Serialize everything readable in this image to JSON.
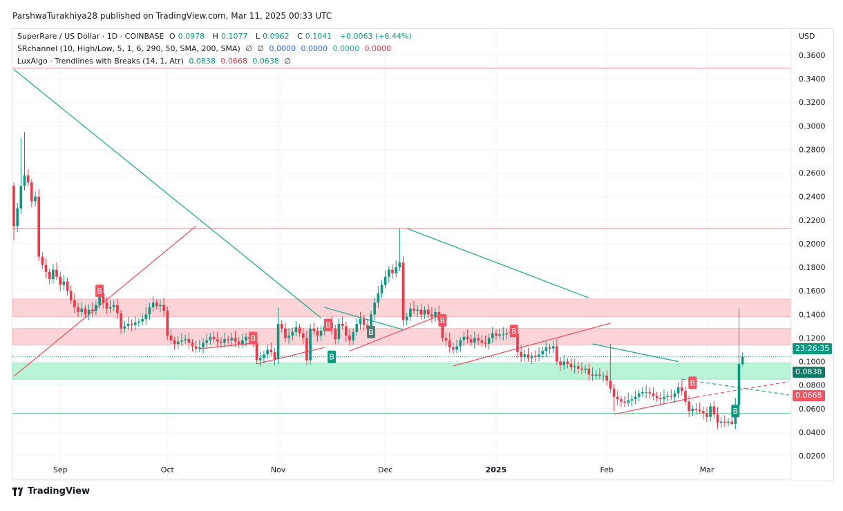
{
  "header": {
    "publisher": "ParshwaTurakhiya28 published on TradingView.com, Mar 11, 2025 00:33 UTC"
  },
  "legend": {
    "symbol": "SuperRare / US Dollar · 1D · COINBASE",
    "o_label": "O",
    "o": "0.0978",
    "h_label": "H",
    "h": "0.1077",
    "l_label": "L",
    "l": "0.0962",
    "c_label": "C",
    "c": "0.1041",
    "change": "+0.0063 (+6.44%)",
    "srchannel": "SRchannel (10, High/Low, 5, 1, 6, 290, 50, SMA, 200, SMA)",
    "sr_values": [
      "∅",
      "∅",
      "0.0000",
      "0.0000",
      "0.0000",
      "0.0000"
    ],
    "luxalgo": "LuxAlgo · Trendlines with Breaks (14, 1, Atr)",
    "lux_values": [
      "0.0838",
      "0.0668",
      "0.0638",
      "∅"
    ]
  },
  "axis": {
    "currency": "USD"
  },
  "badges": {
    "countdown": "23:26:35",
    "upper_trend": "0.0838",
    "lower_trend": "0.0668"
  },
  "footer": {
    "logo_text": "TradingView"
  },
  "colors": {
    "up": "#089981",
    "down": "#f23645",
    "resistance_zone": "#fcd3d6",
    "support_zone": "#b9f4d9",
    "trend_down": "#22ab94",
    "trend_up": "#f7525f"
  },
  "chart_data": {
    "type": "candlestick",
    "interval": "1D",
    "x_start": "2024-08-19",
    "x_end": "2025-03-11",
    "first_open": 0.249,
    "last_candle": {
      "open": 0.0978,
      "high": 0.1077,
      "low": 0.0962,
      "close": 0.1041
    },
    "close": [
      0.215,
      0.23,
      0.249,
      0.258,
      0.252,
      0.236,
      0.24,
      0.189,
      0.182,
      0.176,
      0.17,
      0.178,
      0.172,
      0.165,
      0.168,
      0.16,
      0.152,
      0.146,
      0.142,
      0.145,
      0.14,
      0.144,
      0.143,
      0.148,
      0.158,
      0.15,
      0.145,
      0.146,
      0.148,
      0.141,
      0.128,
      0.13,
      0.132,
      0.131,
      0.133,
      0.134,
      0.136,
      0.14,
      0.146,
      0.15,
      0.147,
      0.148,
      0.143,
      0.122,
      0.118,
      0.115,
      0.117,
      0.118,
      0.119,
      0.116,
      0.113,
      0.111,
      0.112,
      0.116,
      0.118,
      0.121,
      0.119,
      0.117,
      0.116,
      0.119,
      0.118,
      0.12,
      0.117,
      0.115,
      0.118,
      0.121,
      0.119,
      0.116,
      0.101,
      0.103,
      0.106,
      0.11,
      0.108,
      0.102,
      0.132,
      0.128,
      0.12,
      0.122,
      0.125,
      0.129,
      0.124,
      0.12,
      0.101,
      0.128,
      0.126,
      0.122,
      0.126,
      0.13,
      0.133,
      0.128,
      0.119,
      0.132,
      0.13,
      0.122,
      0.118,
      0.125,
      0.132,
      0.136,
      0.131,
      0.128,
      0.14,
      0.15,
      0.158,
      0.165,
      0.172,
      0.178,
      0.175,
      0.18,
      0.184,
      0.135,
      0.138,
      0.145,
      0.143,
      0.144,
      0.14,
      0.144,
      0.14,
      0.138,
      0.142,
      0.135,
      0.12,
      0.118,
      0.112,
      0.11,
      0.113,
      0.118,
      0.121,
      0.119,
      0.116,
      0.12,
      0.118,
      0.116,
      0.115,
      0.12,
      0.124,
      0.122,
      0.123,
      0.123,
      0.124,
      0.125,
      0.124,
      0.108,
      0.104,
      0.106,
      0.103,
      0.105,
      0.104,
      0.106,
      0.109,
      0.112,
      0.111,
      0.113,
      0.1,
      0.097,
      0.1,
      0.098,
      0.095,
      0.096,
      0.094,
      0.093,
      0.094,
      0.089,
      0.088,
      0.089,
      0.088,
      0.088,
      0.084,
      0.077,
      0.07,
      0.068,
      0.066,
      0.065,
      0.067,
      0.068,
      0.07,
      0.073,
      0.074,
      0.074,
      0.073,
      0.071,
      0.069,
      0.068,
      0.07,
      0.071,
      0.07,
      0.073,
      0.078,
      0.075,
      0.066,
      0.058,
      0.06,
      0.059,
      0.058,
      0.056,
      0.053,
      0.062,
      0.055,
      0.048,
      0.049,
      0.048,
      0.049,
      0.047,
      0.063,
      0.0978,
      0.1041
    ],
    "notable_highs": [
      [
        "2024-08-22",
        0.295
      ],
      [
        "2024-08-21",
        0.29
      ],
      [
        "2024-09-12",
        0.162
      ],
      [
        "2024-11-01",
        0.146
      ],
      [
        "2024-12-05",
        0.213
      ],
      [
        "2025-02-02",
        0.115
      ],
      [
        "2025-03-10",
        0.145
      ],
      [
        "2025-03-11",
        0.1077
      ]
    ],
    "notable_lows": [
      [
        "2024-08-19",
        0.203
      ],
      [
        "2025-02-03",
        0.058
      ],
      [
        "2025-03-08",
        0.046
      ]
    ],
    "y_ticks": [
      "0.3600",
      "0.3400",
      "0.3200",
      "0.3000",
      "0.2800",
      "0.2600",
      "0.2400",
      "0.2200",
      "0.2000",
      "0.1800",
      "0.1600",
      "0.1400",
      "0.1200",
      "0.1000",
      "0.0800",
      "0.0600",
      "0.0400",
      "0.0200"
    ],
    "ylim": [
      0.0,
      0.375
    ],
    "x_ticks": [
      [
        "Sep",
        "2024-09-01"
      ],
      [
        "Oct",
        "2024-10-01"
      ],
      [
        "Nov",
        "2024-11-01"
      ],
      [
        "Dec",
        "2024-12-01"
      ],
      [
        "2025",
        "2025-01-01"
      ],
      [
        "Feb",
        "2025-02-01"
      ],
      [
        "Mar",
        "2025-03-01"
      ]
    ],
    "horizontal_levels": [
      {
        "price": 0.349,
        "color": "red"
      },
      {
        "price": 0.213,
        "color": "red"
      },
      {
        "price": 0.056,
        "color": "green"
      }
    ],
    "zones": [
      {
        "from": 0.138,
        "to": 0.153,
        "kind": "resistance"
      },
      {
        "from": 0.114,
        "to": 0.128,
        "kind": "resistance"
      },
      {
        "from": 0.085,
        "to": 0.0986,
        "kind": "support"
      }
    ],
    "trendlines": [
      {
        "kind": "down",
        "from": [
          "2024-08-19",
          0.348
        ],
        "to": [
          "2024-11-13",
          0.137
        ]
      },
      {
        "kind": "down",
        "from": [
          "2024-11-14",
          0.146
        ],
        "to": [
          "2024-12-06",
          0.127
        ]
      },
      {
        "kind": "down",
        "from": [
          "2024-12-07",
          0.213
        ],
        "to": [
          "2025-01-27",
          0.154
        ]
      },
      {
        "kind": "down",
        "from": [
          "2025-01-28",
          0.115
        ],
        "to": [
          "2025-02-21",
          0.1
        ]
      },
      {
        "kind": "down",
        "from": [
          "2025-02-22",
          0.085
        ],
        "to": [
          "2025-03-24",
          0.0716
        ],
        "dashed": true
      },
      {
        "kind": "up",
        "from": [
          "2024-08-19",
          0.0874
        ],
        "to": [
          "2024-10-09",
          0.215
        ]
      },
      {
        "kind": "up",
        "from": [
          "2024-10-10",
          0.1108
        ],
        "to": [
          "2024-10-25",
          0.1156
        ]
      },
      {
        "kind": "up",
        "from": [
          "2024-10-26",
          0.098
        ],
        "to": [
          "2024-11-14",
          0.112
        ]
      },
      {
        "kind": "up",
        "from": [
          "2024-11-21",
          0.109
        ],
        "to": [
          "2024-12-17",
          0.14
        ]
      },
      {
        "kind": "up",
        "from": [
          "2024-12-20",
          0.0962
        ],
        "to": [
          "2025-02-02",
          0.1326
        ]
      },
      {
        "kind": "up",
        "from": [
          "2025-02-03",
          0.0552
        ],
        "to": [
          "2025-02-26",
          0.0698
        ]
      },
      {
        "kind": "up",
        "from": [
          "2025-02-26",
          0.0698
        ],
        "to": [
          "2025-03-24",
          0.083
        ],
        "dashed": true
      }
    ],
    "break_labels": [
      {
        "text": "B",
        "date": "2024-09-12",
        "price": 0.16,
        "kind": "down-break"
      },
      {
        "text": "B",
        "date": "2024-10-25",
        "price": 0.12,
        "kind": "down-break"
      },
      {
        "text": "B",
        "date": "2024-11-15",
        "price": 0.131,
        "kind": "down-break"
      },
      {
        "text": "B",
        "date": "2024-11-16",
        "price": 0.104,
        "kind": "up-break"
      },
      {
        "text": "B",
        "date": "2024-11-27",
        "price": 0.125,
        "kind": "up-break-muted"
      },
      {
        "text": "B",
        "date": "2024-12-17",
        "price": 0.135,
        "kind": "down-break"
      },
      {
        "text": "B",
        "date": "2025-01-06",
        "price": 0.126,
        "kind": "down-break"
      },
      {
        "text": "B",
        "date": "2025-02-25",
        "price": 0.082,
        "kind": "down-break"
      },
      {
        "text": "B",
        "date": "2025-03-09",
        "price": 0.058,
        "kind": "up-break"
      }
    ],
    "grid": true
  }
}
